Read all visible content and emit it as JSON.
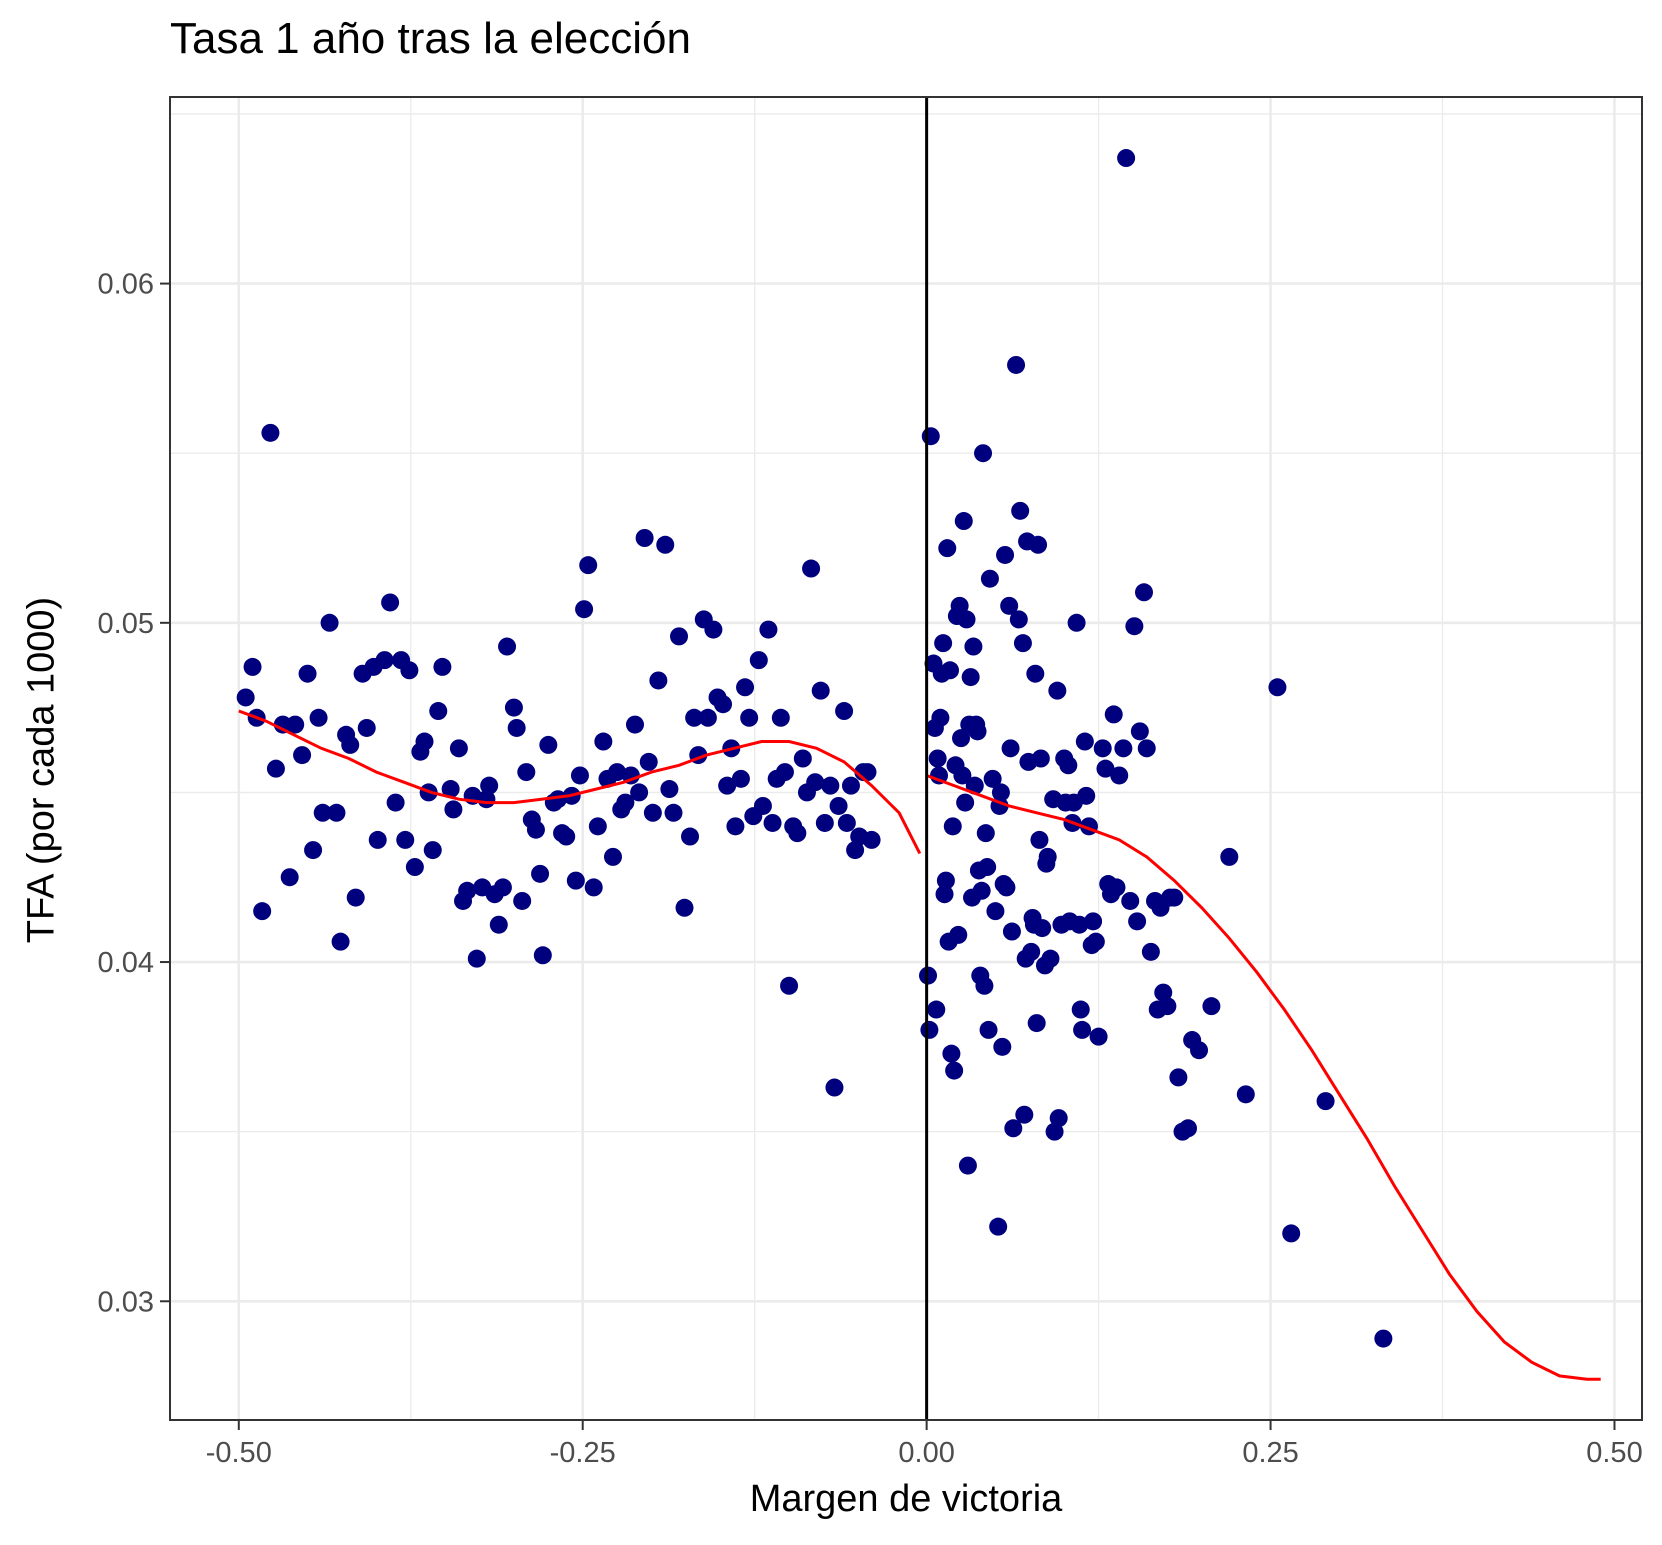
{
  "chart_data": {
    "type": "scatter",
    "title": "Tasa 1 año tras la elección",
    "xlabel": "Margen de victoria",
    "ylabel": "TFA (por cada 1000)",
    "xlim": [
      -0.55,
      0.52
    ],
    "ylim": [
      0.0265,
      0.0655
    ],
    "x_ticks": [
      -0.5,
      -0.25,
      0.0,
      0.25,
      0.5
    ],
    "x_tick_labels": [
      "-0.50",
      "-0.25",
      "0.00",
      "0.25",
      "0.50"
    ],
    "y_ticks": [
      0.03,
      0.04,
      0.05,
      0.06
    ],
    "y_tick_labels": [
      "0.03",
      "0.04",
      "0.05",
      "0.06"
    ],
    "grid": true,
    "cutoff_line_x": 0.0,
    "colors": {
      "points": "#00007f",
      "fit": "#ff0000",
      "cutoff": "#000000",
      "grid": "#ebebeb",
      "panel_border": "#333333"
    },
    "series": [
      {
        "type": "scatter",
        "points": [
          [
            -0.495,
            0.0478
          ],
          [
            -0.49,
            0.0487
          ],
          [
            -0.487,
            0.0472
          ],
          [
            -0.483,
            0.0415
          ],
          [
            -0.477,
            0.0556
          ],
          [
            -0.473,
            0.0457
          ],
          [
            -0.468,
            0.047
          ],
          [
            -0.463,
            0.0425
          ],
          [
            -0.459,
            0.047
          ],
          [
            -0.454,
            0.0461
          ],
          [
            -0.45,
            0.0485
          ],
          [
            -0.446,
            0.0433
          ],
          [
            -0.442,
            0.0472
          ],
          [
            -0.439,
            0.0444
          ],
          [
            -0.434,
            0.05
          ],
          [
            -0.429,
            0.0444
          ],
          [
            -0.426,
            0.0406
          ],
          [
            -0.422,
            0.0467
          ],
          [
            -0.419,
            0.0464
          ],
          [
            -0.415,
            0.0419
          ],
          [
            -0.41,
            0.0485
          ],
          [
            -0.407,
            0.0469
          ],
          [
            -0.402,
            0.0487
          ],
          [
            -0.399,
            0.0436
          ],
          [
            -0.394,
            0.0489
          ],
          [
            -0.39,
            0.0506
          ],
          [
            -0.386,
            0.0447
          ],
          [
            -0.382,
            0.0489
          ],
          [
            -0.379,
            0.0436
          ],
          [
            -0.376,
            0.0486
          ],
          [
            -0.372,
            0.0428
          ],
          [
            -0.368,
            0.0462
          ],
          [
            -0.365,
            0.0465
          ],
          [
            -0.362,
            0.045
          ],
          [
            -0.359,
            0.0433
          ],
          [
            -0.355,
            0.0474
          ],
          [
            -0.352,
            0.0487
          ],
          [
            -0.346,
            0.0451
          ],
          [
            -0.344,
            0.0445
          ],
          [
            -0.34,
            0.0463
          ],
          [
            -0.337,
            0.0418
          ],
          [
            -0.334,
            0.0421
          ],
          [
            -0.33,
            0.0449
          ],
          [
            -0.327,
            0.0401
          ],
          [
            -0.323,
            0.0422
          ],
          [
            -0.32,
            0.0448
          ],
          [
            -0.318,
            0.0452
          ],
          [
            -0.314,
            0.042
          ],
          [
            -0.311,
            0.0411
          ],
          [
            -0.308,
            0.0422
          ],
          [
            -0.305,
            0.0493
          ],
          [
            -0.3,
            0.0475
          ],
          [
            -0.298,
            0.0469
          ],
          [
            -0.294,
            0.0418
          ],
          [
            -0.291,
            0.0456
          ],
          [
            -0.287,
            0.0442
          ],
          [
            -0.284,
            0.0439
          ],
          [
            -0.281,
            0.0426
          ],
          [
            -0.279,
            0.0402
          ],
          [
            -0.275,
            0.0464
          ],
          [
            -0.271,
            0.0447
          ],
          [
            -0.268,
            0.0448
          ],
          [
            -0.265,
            0.0438
          ],
          [
            -0.262,
            0.0437
          ],
          [
            -0.258,
            0.0449
          ],
          [
            -0.255,
            0.0424
          ],
          [
            -0.252,
            0.0455
          ],
          [
            -0.249,
            0.0504
          ],
          [
            -0.246,
            0.0517
          ],
          [
            -0.242,
            0.0422
          ],
          [
            -0.239,
            0.044
          ],
          [
            -0.235,
            0.0465
          ],
          [
            -0.232,
            0.0454
          ],
          [
            -0.228,
            0.0431
          ],
          [
            -0.225,
            0.0456
          ],
          [
            -0.222,
            0.0445
          ],
          [
            -0.219,
            0.0447
          ],
          [
            -0.215,
            0.0455
          ],
          [
            -0.212,
            0.047
          ],
          [
            -0.209,
            0.045
          ],
          [
            -0.205,
            0.0525
          ],
          [
            -0.202,
            0.0459
          ],
          [
            -0.199,
            0.0444
          ],
          [
            -0.195,
            0.0483
          ],
          [
            -0.19,
            0.0523
          ],
          [
            -0.187,
            0.0451
          ],
          [
            -0.184,
            0.0444
          ],
          [
            -0.18,
            0.0496
          ],
          [
            -0.176,
            0.0416
          ],
          [
            -0.172,
            0.0437
          ],
          [
            -0.169,
            0.0472
          ],
          [
            -0.166,
            0.0461
          ],
          [
            -0.162,
            0.0501
          ],
          [
            -0.159,
            0.0472
          ],
          [
            -0.155,
            0.0498
          ],
          [
            -0.152,
            0.0478
          ],
          [
            -0.148,
            0.0476
          ],
          [
            -0.145,
            0.0452
          ],
          [
            -0.142,
            0.0463
          ],
          [
            -0.139,
            0.044
          ],
          [
            -0.135,
            0.0454
          ],
          [
            -0.132,
            0.0481
          ],
          [
            -0.129,
            0.0472
          ],
          [
            -0.126,
            0.0443
          ],
          [
            -0.122,
            0.0489
          ],
          [
            -0.119,
            0.0446
          ],
          [
            -0.115,
            0.0498
          ],
          [
            -0.112,
            0.0441
          ],
          [
            -0.109,
            0.0454
          ],
          [
            -0.106,
            0.0472
          ],
          [
            -0.103,
            0.0456
          ],
          [
            -0.1,
            0.0393
          ],
          [
            -0.097,
            0.044
          ],
          [
            -0.094,
            0.0438
          ],
          [
            -0.09,
            0.046
          ],
          [
            -0.087,
            0.045
          ],
          [
            -0.084,
            0.0516
          ],
          [
            -0.081,
            0.0453
          ],
          [
            -0.077,
            0.048
          ],
          [
            -0.074,
            0.0441
          ],
          [
            -0.07,
            0.0452
          ],
          [
            -0.067,
            0.0363
          ],
          [
            -0.064,
            0.0446
          ],
          [
            -0.06,
            0.0474
          ],
          [
            -0.058,
            0.0441
          ],
          [
            -0.055,
            0.0452
          ],
          [
            -0.052,
            0.0433
          ],
          [
            -0.049,
            0.0437
          ],
          [
            -0.046,
            0.0456
          ],
          [
            -0.043,
            0.0456
          ],
          [
            -0.04,
            0.0436
          ],
          [
            0.001,
            0.0396
          ],
          [
            0.002,
            0.038
          ],
          [
            0.003,
            0.0555
          ],
          [
            0.005,
            0.0488
          ],
          [
            0.006,
            0.0469
          ],
          [
            0.007,
            0.0386
          ],
          [
            0.008,
            0.046
          ],
          [
            0.009,
            0.0455
          ],
          [
            0.01,
            0.0472
          ],
          [
            0.011,
            0.0485
          ],
          [
            0.012,
            0.0494
          ],
          [
            0.013,
            0.042
          ],
          [
            0.014,
            0.0424
          ],
          [
            0.015,
            0.0522
          ],
          [
            0.016,
            0.0406
          ],
          [
            0.017,
            0.0486
          ],
          [
            0.018,
            0.0373
          ],
          [
            0.019,
            0.044
          ],
          [
            0.02,
            0.0368
          ],
          [
            0.021,
            0.0458
          ],
          [
            0.022,
            0.0502
          ],
          [
            0.023,
            0.0408
          ],
          [
            0.024,
            0.0505
          ],
          [
            0.025,
            0.0466
          ],
          [
            0.026,
            0.0455
          ],
          [
            0.027,
            0.053
          ],
          [
            0.028,
            0.0447
          ],
          [
            0.029,
            0.0501
          ],
          [
            0.03,
            0.034
          ],
          [
            0.031,
            0.047
          ],
          [
            0.032,
            0.0484
          ],
          [
            0.033,
            0.0419
          ],
          [
            0.034,
            0.0493
          ],
          [
            0.035,
            0.0452
          ],
          [
            0.036,
            0.047
          ],
          [
            0.037,
            0.0468
          ],
          [
            0.038,
            0.0427
          ],
          [
            0.039,
            0.0396
          ],
          [
            0.04,
            0.0421
          ],
          [
            0.041,
            0.055
          ],
          [
            0.042,
            0.0393
          ],
          [
            0.043,
            0.0438
          ],
          [
            0.044,
            0.0428
          ],
          [
            0.045,
            0.038
          ],
          [
            0.046,
            0.0513
          ],
          [
            0.048,
            0.0454
          ],
          [
            0.05,
            0.0415
          ],
          [
            0.052,
            0.0322
          ],
          [
            0.053,
            0.0446
          ],
          [
            0.054,
            0.045
          ],
          [
            0.055,
            0.0375
          ],
          [
            0.056,
            0.0423
          ],
          [
            0.057,
            0.052
          ],
          [
            0.058,
            0.0422
          ],
          [
            0.06,
            0.0505
          ],
          [
            0.061,
            0.0463
          ],
          [
            0.062,
            0.0409
          ],
          [
            0.063,
            0.0351
          ],
          [
            0.065,
            0.0576
          ],
          [
            0.067,
            0.0501
          ],
          [
            0.068,
            0.0533
          ],
          [
            0.07,
            0.0494
          ],
          [
            0.071,
            0.0355
          ],
          [
            0.072,
            0.0401
          ],
          [
            0.073,
            0.0524
          ],
          [
            0.074,
            0.0459
          ],
          [
            0.076,
            0.0403
          ],
          [
            0.077,
            0.0413
          ],
          [
            0.078,
            0.0411
          ],
          [
            0.079,
            0.0485
          ],
          [
            0.08,
            0.0382
          ],
          [
            0.081,
            0.0523
          ],
          [
            0.082,
            0.0436
          ],
          [
            0.083,
            0.046
          ],
          [
            0.084,
            0.041
          ],
          [
            0.086,
            0.0399
          ],
          [
            0.087,
            0.0429
          ],
          [
            0.088,
            0.0431
          ],
          [
            0.09,
            0.0401
          ],
          [
            0.092,
            0.0448
          ],
          [
            0.093,
            0.035
          ],
          [
            0.095,
            0.048
          ],
          [
            0.096,
            0.0354
          ],
          [
            0.098,
            0.0411
          ],
          [
            0.1,
            0.046
          ],
          [
            0.101,
            0.0447
          ],
          [
            0.103,
            0.0458
          ],
          [
            0.104,
            0.0412
          ],
          [
            0.106,
            0.0441
          ],
          [
            0.107,
            0.0447
          ],
          [
            0.109,
            0.05
          ],
          [
            0.111,
            0.0411
          ],
          [
            0.112,
            0.0386
          ],
          [
            0.113,
            0.038
          ],
          [
            0.115,
            0.0465
          ],
          [
            0.116,
            0.0449
          ],
          [
            0.118,
            0.044
          ],
          [
            0.12,
            0.0405
          ],
          [
            0.121,
            0.0412
          ],
          [
            0.123,
            0.0406
          ],
          [
            0.125,
            0.0378
          ],
          [
            0.128,
            0.0463
          ],
          [
            0.13,
            0.0457
          ],
          [
            0.132,
            0.0423
          ],
          [
            0.134,
            0.042
          ],
          [
            0.136,
            0.0473
          ],
          [
            0.138,
            0.0422
          ],
          [
            0.14,
            0.0455
          ],
          [
            0.143,
            0.0463
          ],
          [
            0.145,
            0.0637
          ],
          [
            0.148,
            0.0418
          ],
          [
            0.151,
            0.0499
          ],
          [
            0.153,
            0.0412
          ],
          [
            0.155,
            0.0468
          ],
          [
            0.158,
            0.0509
          ],
          [
            0.16,
            0.0463
          ],
          [
            0.163,
            0.0403
          ],
          [
            0.166,
            0.0418
          ],
          [
            0.168,
            0.0386
          ],
          [
            0.17,
            0.0416
          ],
          [
            0.172,
            0.0391
          ],
          [
            0.175,
            0.0387
          ],
          [
            0.177,
            0.0419
          ],
          [
            0.18,
            0.0419
          ],
          [
            0.183,
            0.0366
          ],
          [
            0.186,
            0.035
          ],
          [
            0.19,
            0.0351
          ],
          [
            0.193,
            0.0377
          ],
          [
            0.198,
            0.0374
          ],
          [
            0.207,
            0.0387
          ],
          [
            0.22,
            0.0431
          ],
          [
            0.232,
            0.0361
          ],
          [
            0.255,
            0.0481
          ],
          [
            0.265,
            0.032
          ],
          [
            0.29,
            0.0359
          ],
          [
            0.332,
            0.0289
          ]
        ]
      },
      {
        "type": "line",
        "name": "",
        "side": "left",
        "x": [
          -0.5,
          -0.48,
          -0.46,
          -0.44,
          -0.42,
          -0.4,
          -0.38,
          -0.36,
          -0.34,
          -0.32,
          -0.3,
          -0.28,
          -0.26,
          -0.24,
          -0.22,
          -0.2,
          -0.18,
          -0.16,
          -0.14,
          -0.12,
          -0.1,
          -0.08,
          -0.06,
          -0.04,
          -0.02,
          -0.005
        ],
        "y": [
          0.0474,
          0.0471,
          0.0467,
          0.0463,
          0.046,
          0.0456,
          0.0453,
          0.045,
          0.0448,
          0.0447,
          0.0447,
          0.0448,
          0.0449,
          0.0451,
          0.0453,
          0.0456,
          0.0458,
          0.0461,
          0.0463,
          0.0465,
          0.0465,
          0.0463,
          0.0459,
          0.0452,
          0.0444,
          0.0432
        ]
      },
      {
        "type": "line",
        "name": "",
        "side": "right",
        "x": [
          0.0,
          0.02,
          0.04,
          0.06,
          0.08,
          0.1,
          0.12,
          0.14,
          0.16,
          0.18,
          0.2,
          0.22,
          0.24,
          0.26,
          0.28,
          0.3,
          0.32,
          0.34,
          0.36,
          0.38,
          0.4,
          0.42,
          0.44,
          0.46,
          0.48,
          0.49
        ],
        "y": [
          0.0455,
          0.0452,
          0.0449,
          0.0446,
          0.0444,
          0.0442,
          0.0439,
          0.0436,
          0.0431,
          0.0424,
          0.0416,
          0.0407,
          0.0397,
          0.0386,
          0.0374,
          0.0361,
          0.0348,
          0.0334,
          0.0321,
          0.0308,
          0.0297,
          0.0288,
          0.0282,
          0.0278,
          0.0277,
          0.0277
        ]
      }
    ]
  }
}
